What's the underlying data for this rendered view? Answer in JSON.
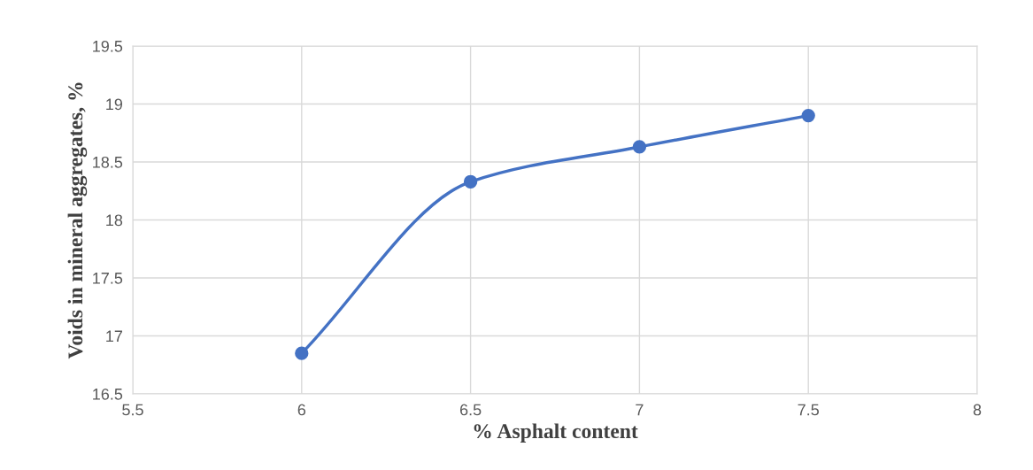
{
  "chart_data": {
    "type": "line",
    "xlabel": "% Asphalt content",
    "ylabel": "Voids in mineral aggregates, %",
    "x": [
      6,
      6.5,
      7,
      7.5
    ],
    "series": [
      {
        "color": "#4472c4",
        "values": [
          16.85,
          18.33,
          18.63,
          18.9
        ]
      }
    ],
    "xlim": [
      5.5,
      8
    ],
    "xticks": [
      5.5,
      6,
      6.5,
      7,
      7.5,
      8
    ],
    "ylim": [
      16.5,
      19.5
    ],
    "yticks": [
      16.5,
      17,
      17.5,
      18,
      18.5,
      19,
      19.5
    ],
    "grid": true,
    "marker": "circle",
    "line_style": "solid",
    "legend": false
  }
}
